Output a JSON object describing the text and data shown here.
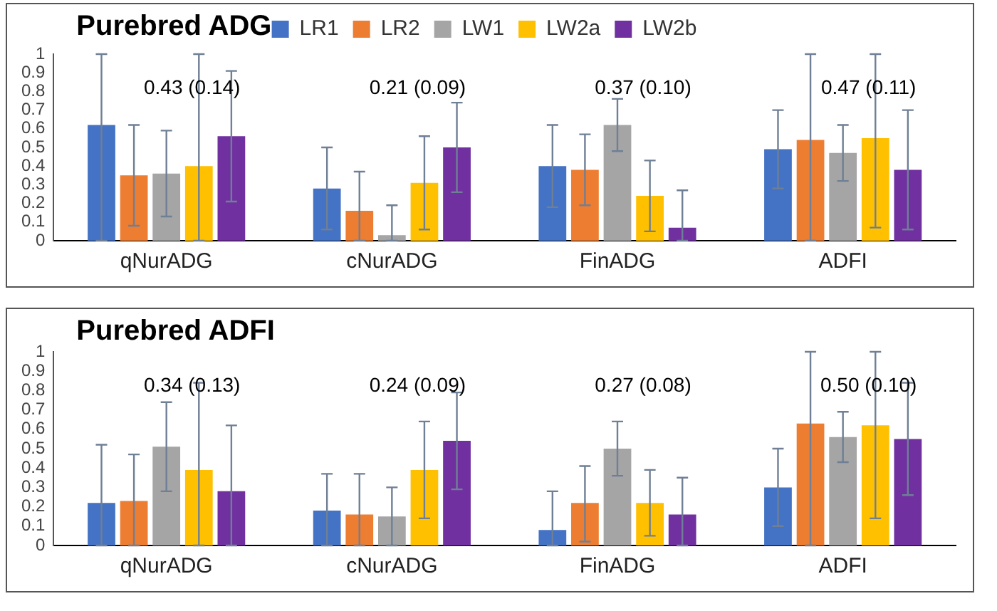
{
  "chart_data": [
    {
      "type": "bar",
      "title": "Purebred ADG",
      "categories": [
        "qNurADG",
        "cNurADG",
        "FinADG",
        "ADFI"
      ],
      "series": [
        {
          "name": "LR1",
          "color": "#4472c4",
          "values": [
            0.62,
            0.28,
            0.4,
            0.49
          ],
          "errors": [
            [
              0,
              1
            ],
            [
              0.06,
              0.5
            ],
            [
              0.18,
              0.62
            ],
            [
              0.28,
              0.7
            ]
          ]
        },
        {
          "name": "LR2",
          "color": "#ed7d31",
          "values": [
            0.35,
            0.16,
            0.38,
            0.54
          ],
          "errors": [
            [
              0.08,
              0.62
            ],
            [
              0,
              0.37
            ],
            [
              0.19,
              0.57
            ],
            [
              0,
              1
            ]
          ]
        },
        {
          "name": "LW1",
          "color": "#a5a5a5",
          "values": [
            0.36,
            0.03,
            0.62,
            0.47
          ],
          "errors": [
            [
              0.13,
              0.59
            ],
            [
              0,
              0.19
            ],
            [
              0.48,
              0.76
            ],
            [
              0.32,
              0.62
            ]
          ]
        },
        {
          "name": "LW2a",
          "color": "#ffc000",
          "values": [
            0.4,
            0.31,
            0.24,
            0.55
          ],
          "errors": [
            [
              0,
              1
            ],
            [
              0.06,
              0.56
            ],
            [
              0.05,
              0.43
            ],
            [
              0.07,
              1
            ]
          ]
        },
        {
          "name": "LW2b",
          "color": "#7030a0",
          "values": [
            0.56,
            0.5,
            0.07,
            0.38
          ],
          "errors": [
            [
              0.21,
              0.91
            ],
            [
              0.26,
              0.74
            ],
            [
              0,
              0.27
            ],
            [
              0.06,
              0.7
            ]
          ]
        }
      ],
      "ylim": [
        0,
        1
      ],
      "yticks": [
        0,
        0.1,
        0.2,
        0.3,
        0.4,
        0.5,
        0.6,
        0.7,
        0.8,
        0.9,
        1
      ],
      "grid": false,
      "legend": "top",
      "annotations": [
        "0.43 (0.14)",
        "0.21 (0.09)",
        "0.37 (0.10)",
        "0.47 (0.11)"
      ]
    },
    {
      "type": "bar",
      "title": "Purebred ADFI",
      "categories": [
        "qNurADG",
        "cNurADG",
        "FinADG",
        "ADFI"
      ],
      "series": [
        {
          "color": "#4472c4",
          "values": [
            0.22,
            0.18,
            0.08,
            0.3
          ],
          "errors": [
            [
              0,
              0.52
            ],
            [
              0,
              0.37
            ],
            [
              0,
              0.28
            ],
            [
              0.1,
              0.5
            ]
          ]
        },
        {
          "color": "#ed7d31",
          "values": [
            0.23,
            0.16,
            0.22,
            0.63
          ],
          "errors": [
            [
              0,
              0.47
            ],
            [
              0,
              0.37
            ],
            [
              0.02,
              0.41
            ],
            [
              0,
              1
            ]
          ]
        },
        {
          "color": "#a5a5a5",
          "values": [
            0.51,
            0.15,
            0.5,
            0.56
          ],
          "errors": [
            [
              0.28,
              0.74
            ],
            [
              0,
              0.3
            ],
            [
              0.36,
              0.64
            ],
            [
              0.43,
              0.69
            ]
          ]
        },
        {
          "color": "#ffc000",
          "values": [
            0.39,
            0.39,
            0.22,
            0.62
          ],
          "errors": [
            [
              0,
              0.84
            ],
            [
              0.14,
              0.64
            ],
            [
              0.05,
              0.39
            ],
            [
              0.14,
              1
            ]
          ]
        },
        {
          "color": "#7030a0",
          "values": [
            0.28,
            0.54,
            0.16,
            0.55
          ],
          "errors": [
            [
              0,
              0.62
            ],
            [
              0.29,
              0.79
            ],
            [
              0,
              0.35
            ],
            [
              0.26,
              0.84
            ]
          ]
        }
      ],
      "ylim": [
        0,
        1
      ],
      "yticks": [
        0,
        0.1,
        0.2,
        0.3,
        0.4,
        0.5,
        0.6,
        0.7,
        0.8,
        0.9,
        1
      ],
      "grid": false,
      "legend": false,
      "annotations": [
        "0.34 (0.13)",
        "0.24 (0.09)",
        "0.27 (0.08)",
        "0.50 (0.10)"
      ]
    }
  ]
}
